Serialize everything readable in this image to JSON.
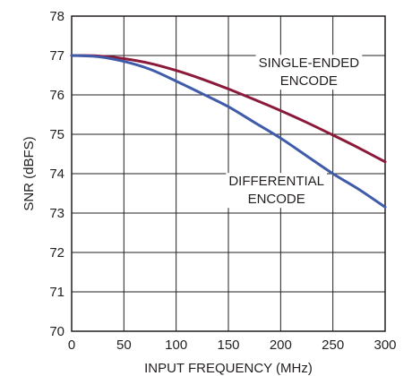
{
  "chart_data": {
    "type": "line",
    "title": "",
    "xlabel": "INPUT FREQUENCY (MHz)",
    "ylabel": "SNR (dBFS)",
    "xlim": [
      0,
      300
    ],
    "ylim": [
      70,
      78
    ],
    "xticks": [
      "0",
      "50",
      "100",
      "150",
      "200",
      "250",
      "300"
    ],
    "yticks": [
      "70",
      "71",
      "72",
      "73",
      "74",
      "75",
      "76",
      "77",
      "78"
    ],
    "grid": true,
    "series": [
      {
        "name": "SINGLE-ENDED ENCODE",
        "color": "#8b1a3a",
        "x": [
          0,
          25,
          50,
          75,
          100,
          125,
          150,
          175,
          200,
          225,
          250,
          275,
          300
        ],
        "y": [
          77.0,
          76.99,
          76.92,
          76.8,
          76.62,
          76.4,
          76.15,
          75.88,
          75.6,
          75.3,
          74.98,
          74.65,
          74.3
        ]
      },
      {
        "name": "DIFFERENTIAL ENCODE",
        "color": "#3f5ba9",
        "x": [
          0,
          25,
          50,
          75,
          100,
          125,
          150,
          175,
          200,
          225,
          250,
          275,
          300
        ],
        "y": [
          77.0,
          76.97,
          76.85,
          76.65,
          76.35,
          76.03,
          75.7,
          75.3,
          74.9,
          74.45,
          74.0,
          73.6,
          73.15
        ]
      }
    ],
    "annotations": [
      {
        "lines": [
          "SINGLE-ENDED",
          "ENCODE"
        ],
        "x": 227,
        "y": 76.7
      },
      {
        "lines": [
          "DIFFERENTIAL",
          "ENCODE"
        ],
        "x": 196,
        "y": 73.7
      }
    ]
  }
}
